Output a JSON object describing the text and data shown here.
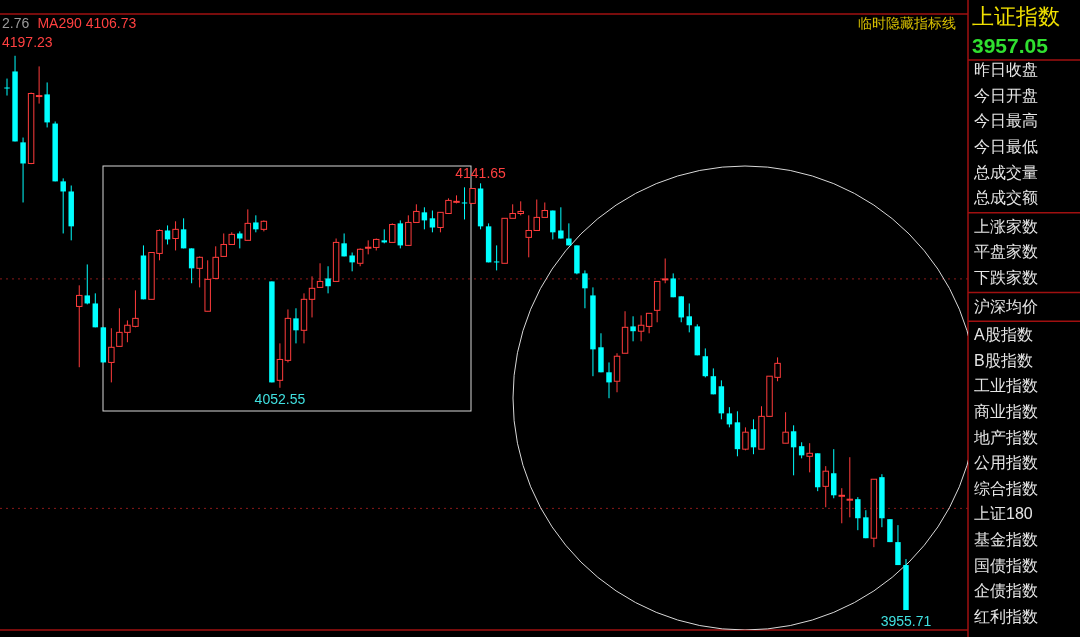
{
  "chart_data": [
    {
      "type": "candlestick",
      "categories": [
        null,
        null,
        null,
        null,
        null,
        null,
        null,
        null,
        null,
        null,
        null,
        null,
        null,
        null,
        null,
        null,
        null,
        null,
        null,
        null,
        null,
        null,
        null,
        null,
        null,
        null,
        null,
        null,
        null,
        null,
        null,
        null,
        null,
        null,
        null,
        null,
        null,
        null,
        null,
        null,
        null,
        null,
        null,
        null,
        null,
        null,
        null,
        null,
        null,
        null,
        null,
        null,
        null,
        null,
        null,
        null,
        null,
        null,
        null,
        null,
        null,
        null,
        null,
        null,
        null,
        null,
        null,
        null,
        null,
        null,
        null,
        null,
        null,
        null,
        null,
        null,
        null,
        null,
        null,
        null,
        null,
        null,
        null,
        null,
        null,
        null,
        null,
        null,
        null,
        null,
        null,
        null,
        null,
        null,
        null,
        null,
        null,
        null,
        null,
        null,
        null,
        null,
        null,
        null,
        null,
        null,
        null,
        null,
        null,
        null,
        null,
        null,
        null
      ],
      "ohlc": [
        [
          4183.4,
          4187.3,
          4179.9,
          4183.2
        ],
        [
          4190.4,
          4197.23,
          4159.9,
          4159.9
        ],
        [
          4159.5,
          4161.6,
          4133.3,
          4150.3
        ],
        [
          4150.3,
          4181.2,
          4150.0,
          4180.8
        ],
        [
          4179.5,
          4192.6,
          4176.4,
          4179.9
        ],
        [
          4180.4,
          4185.6,
          4166.0,
          4168.2
        ],
        [
          4167.7,
          4168.6,
          4142.5,
          4142.5
        ],
        [
          4142.5,
          4143.8,
          4119.8,
          4138.1
        ],
        [
          4138.1,
          4140.7,
          4116.8,
          4122.9
        ],
        [
          4088.0,
          4097.2,
          4061.5,
          4092.8
        ],
        [
          4092.8,
          4106.3,
          4088.9,
          4089.3
        ],
        [
          4089.3,
          4093.7,
          4078.9,
          4078.9
        ],
        [
          4078.9,
          4078.9,
          4063.6,
          4063.6
        ],
        [
          4063.6,
          4078.5,
          4054.9,
          4070.2
        ],
        [
          4070.6,
          4087.2,
          4070.6,
          4076.7
        ],
        [
          4076.7,
          4081.9,
          4072.4,
          4079.8
        ],
        [
          4079.3,
          4095.0,
          4078.9,
          4082.8
        ],
        [
          4110.2,
          4114.6,
          4091.1,
          4091.1
        ],
        [
          4091.1,
          4111.5,
          4091.1,
          4111.5
        ],
        [
          4111.1,
          4121.6,
          4108.1,
          4121.1
        ],
        [
          4121.1,
          4123.3,
          4115.0,
          4117.2
        ],
        [
          4117.6,
          4125.1,
          4112.4,
          4121.6
        ],
        [
          4121.6,
          4126.4,
          4113.3,
          4113.3
        ],
        [
          4113.3,
          4113.3,
          4098.1,
          4104.6
        ],
        [
          4104.6,
          4109.8,
          4096.3,
          4109.4
        ],
        [
          4085.9,
          4108.1,
          4085.9,
          4099.8
        ],
        [
          4100.2,
          4114.2,
          4099.8,
          4109.4
        ],
        [
          4109.8,
          4119.8,
          4109.8,
          4115.0
        ],
        [
          4115.0,
          4120.3,
          4115.0,
          4119.4
        ],
        [
          4119.8,
          4120.7,
          4113.3,
          4117.6
        ],
        [
          4116.8,
          4130.3,
          4116.8,
          4124.2
        ],
        [
          4124.6,
          4127.7,
          4120.3,
          4121.6
        ],
        [
          4121.6,
          4125.5,
          4120.7,
          4125.1
        ],
        [
          4098.9,
          4098.9,
          4054.9,
          4054.9
        ],
        [
          4055.8,
          4071.9,
          4052.55,
          4064.9
        ],
        [
          4064.5,
          4086.7,
          4063.6,
          4082.8
        ],
        [
          4082.8,
          4087.2,
          4071.9,
          4077.6
        ],
        [
          4077.6,
          4093.7,
          4071.9,
          4091.1
        ],
        [
          4091.1,
          4101.1,
          4083.2,
          4095.9
        ],
        [
          4096.3,
          4106.8,
          4096.3,
          4098.9
        ],
        [
          4100.2,
          4105.5,
          4093.7,
          4096.8
        ],
        [
          4098.9,
          4117.6,
          4098.9,
          4115.9
        ],
        [
          4115.5,
          4119.8,
          4109.8,
          4109.8
        ],
        [
          4110.2,
          4111.5,
          4103.3,
          4107.2
        ],
        [
          4106.8,
          4113.3,
          4105.5,
          4112.9
        ],
        [
          4113.5,
          4116.8,
          4110.7,
          4113.8
        ],
        [
          4113.7,
          4117.6,
          4112.4,
          4117.2
        ],
        [
          4116.8,
          4121.6,
          4115.5,
          4115.9
        ],
        [
          4115.9,
          4124.2,
          4115.9,
          4123.7
        ],
        [
          4124.2,
          4125.5,
          4113.3,
          4114.6
        ],
        [
          4114.6,
          4127.7,
          4114.6,
          4124.6
        ],
        [
          4124.6,
          4132.5,
          4124.6,
          4129.4
        ],
        [
          4129.0,
          4131.2,
          4121.6,
          4125.5
        ],
        [
          4126.4,
          4129.8,
          4120.3,
          4122.4
        ],
        [
          4122.4,
          4129.0,
          4120.3,
          4129.0
        ],
        [
          4128.5,
          4135.1,
          4128.5,
          4134.2
        ],
        [
          4133.5,
          4136.4,
          4132.9,
          4133.8
        ],
        [
          4133.3,
          4139.9,
          4125.9,
          4133.1
        ],
        [
          4132.9,
          4139.4,
          4132.9,
          4139.4
        ],
        [
          4139.4,
          4141.65,
          4121.6,
          4122.9
        ],
        [
          4122.9,
          4124.2,
          4107.2,
          4107.2
        ],
        [
          4107.6,
          4114.6,
          4103.7,
          4107.4
        ],
        [
          4106.8,
          4126.4,
          4106.8,
          4126.4
        ],
        [
          4126.4,
          4132.5,
          4126.4,
          4128.5
        ],
        [
          4128.5,
          4133.8,
          4127.7,
          4129.4
        ],
        [
          4118.1,
          4127.7,
          4109.4,
          4121.1
        ],
        [
          4121.1,
          4134.6,
          4121.1,
          4126.8
        ],
        [
          4126.8,
          4133.3,
          4126.8,
          4129.8
        ],
        [
          4129.8,
          4129.8,
          4117.2,
          4120.3
        ],
        [
          4121.1,
          4131.2,
          4117.6,
          4117.6
        ],
        [
          4117.6,
          4124.2,
          4114.6,
          4114.6
        ],
        [
          4114.6,
          4114.6,
          4102.0,
          4102.4
        ],
        [
          4102.4,
          4103.7,
          4087.2,
          4095.9
        ],
        [
          4092.8,
          4096.3,
          4057.6,
          4069.3
        ],
        [
          4070.2,
          4076.3,
          4059.3,
          4059.3
        ],
        [
          4059.3,
          4063.6,
          4048.0,
          4054.9
        ],
        [
          4055.4,
          4067.6,
          4050.6,
          4066.3
        ],
        [
          4067.6,
          4085.9,
          4067.6,
          4078.9
        ],
        [
          4079.3,
          4083.7,
          4072.8,
          4077.2
        ],
        [
          4077.2,
          4084.1,
          4072.8,
          4079.8
        ],
        [
          4079.3,
          4085.0,
          4076.3,
          4085.0
        ],
        [
          4086.3,
          4098.9,
          4081.1,
          4098.9
        ],
        [
          4099.6,
          4108.9,
          4098.1,
          4100.0
        ],
        [
          4100.2,
          4102.4,
          4092.0,
          4092.0
        ],
        [
          4092.4,
          4092.4,
          4081.1,
          4083.2
        ],
        [
          4083.7,
          4089.3,
          4076.7,
          4079.8
        ],
        [
          4079.3,
          4080.2,
          4066.7,
          4066.7
        ],
        [
          4066.3,
          4069.7,
          4057.1,
          4057.6
        ],
        [
          4057.6,
          4061.0,
          4049.7,
          4049.7
        ],
        [
          4053.2,
          4055.8,
          4038.8,
          4041.4
        ],
        [
          4041.4,
          4044.1,
          4035.3,
          4036.6
        ],
        [
          4037.5,
          4042.3,
          4022.7,
          4025.8
        ],
        [
          4025.8,
          4035.3,
          4025.3,
          4033.2
        ],
        [
          4034.5,
          4038.8,
          4023.6,
          4026.6
        ],
        [
          4025.8,
          4044.5,
          4025.8,
          4040.1
        ],
        [
          4040.1,
          4057.6,
          4040.1,
          4057.6
        ],
        [
          4057.1,
          4065.8,
          4055.4,
          4063.2
        ],
        [
          4028.4,
          4041.9,
          4028.4,
          4033.2
        ],
        [
          4033.6,
          4036.2,
          4014.4,
          4026.6
        ],
        [
          4027.1,
          4028.8,
          4021.8,
          4023.1
        ],
        [
          4022.7,
          4028.4,
          4015.7,
          4024.0
        ],
        [
          4024.0,
          4024.0,
          4007.5,
          4009.2
        ],
        [
          4009.6,
          4018.4,
          4000.5,
          4016.2
        ],
        [
          4015.3,
          4025.8,
          4004.4,
          4005.7
        ],
        [
          4005.5,
          4008.8,
          3993.5,
          4005.7
        ],
        [
          4003.8,
          4022.3,
          3996.1,
          4004.0
        ],
        [
          4004.0,
          4004.9,
          3990.5,
          3995.7
        ],
        [
          3996.1,
          3999.2,
          3987.0,
          3987.0
        ],
        [
          3987.0,
          4012.7,
          3983.1,
          4012.7
        ],
        [
          4013.6,
          4014.9,
          3991.8,
          3995.7
        ],
        [
          3995.3,
          3995.3,
          3985.3,
          3985.3
        ],
        [
          3985.3,
          3992.7,
          3975.3,
          3975.3
        ],
        [
          3975.3,
          3977.9,
          3955.71,
          3955.71
        ]
      ],
      "colors": [
        "#00ffff",
        "#00ffff",
        "#00ffff",
        "#ff3c3c",
        "#ff3c3c",
        "#00ffff",
        "#00ffff",
        "#00ffff",
        "#00ffff",
        "#ff3c3c",
        "#00ffff",
        "#00ffff",
        "#00ffff",
        "#ff3c3c",
        "#ff3c3c",
        "#ff3c3c",
        "#ff3c3c",
        "#00ffff",
        "#ff3c3c",
        "#ff3c3c",
        "#00ffff",
        "#ff3c3c",
        "#00ffff",
        "#00ffff",
        "#ff3c3c",
        "#ff3c3c",
        "#ff3c3c",
        "#ff3c3c",
        "#ff3c3c",
        "#00ffff",
        "#ff3c3c",
        "#00ffff",
        "#ff3c3c",
        "#00ffff",
        "#ff3c3c",
        "#ff3c3c",
        "#00ffff",
        "#ff3c3c",
        "#ff3c3c",
        "#ff3c3c",
        "#00ffff",
        "#ff3c3c",
        "#00ffff",
        "#00ffff",
        "#ff3c3c",
        "#ff3c3c",
        "#ff3c3c",
        "#00ffff",
        "#ff3c3c",
        "#00ffff",
        "#ff3c3c",
        "#ff3c3c",
        "#00ffff",
        "#00ffff",
        "#ff3c3c",
        "#ff3c3c",
        "#ff3c3c",
        "#00ffff",
        "#ff3c3c",
        "#00ffff",
        "#00ffff",
        "#00ffff",
        "#ff3c3c",
        "#ff3c3c",
        "#ff3c3c",
        "#ff3c3c",
        "#ff3c3c",
        "#ff3c3c",
        "#00ffff",
        "#00ffff",
        "#00ffff",
        "#00ffff",
        "#00ffff",
        "#00ffff",
        "#00ffff",
        "#00ffff",
        "#ff3c3c",
        "#ff3c3c",
        "#00ffff",
        "#ff3c3c",
        "#ff3c3c",
        "#ff3c3c",
        "#ff3c3c",
        "#00ffff",
        "#00ffff",
        "#00ffff",
        "#00ffff",
        "#00ffff",
        "#00ffff",
        "#00ffff",
        "#00ffff",
        "#00ffff",
        "#ff3c3c",
        "#00ffff",
        "#ff3c3c",
        "#ff3c3c",
        "#ff3c3c",
        "#ff3c3c",
        "#00ffff",
        "#00ffff",
        "#ff3c3c",
        "#00ffff",
        "#ff3c3c",
        "#00ffff",
        "#ff3c3c",
        "#ff3c3c",
        "#00ffff",
        "#00ffff",
        "#ff3c3c",
        "#00ffff",
        "#00ffff",
        "#00ffff",
        "#00ffff"
      ],
      "ylim": [
        3947,
        4215
      ],
      "ref_lines": [
        {
          "axis": "y",
          "value": 4100,
          "color": "#8b1a1a",
          "line_style": "dotted"
        },
        {
          "axis": "y",
          "value": 4000,
          "color": "#8b1a1a",
          "line_style": "dotted"
        }
      ],
      "annotations": [
        "2.76",
        "MA290 4106.73",
        "临时隐藏指标线",
        "4197.23",
        {
          "text": "4141.65",
          "y": 4141.65
        },
        {
          "text": "4052.55",
          "y": 4052.55
        },
        {
          "text": "3955.71",
          "y": 3955.71
        }
      ]
    },
    {
      "type": "other",
      "title": "上证指数",
      "subtitle": "3957.05",
      "annotations": [
        "昨日收盘",
        "今日开盘",
        "今日最高",
        "今日最低",
        "总成交量",
        "总成交额",
        "上涨家数",
        "平盘家数",
        "下跌家数",
        "沪深均价",
        "A股指数",
        "B股指数",
        "工业指数",
        "商业指数",
        "地产指数",
        "公用指数",
        "综合指数",
        "上证180",
        "基金指数",
        "国债指数",
        "企债指数",
        "红利指数"
      ]
    }
  ]
}
